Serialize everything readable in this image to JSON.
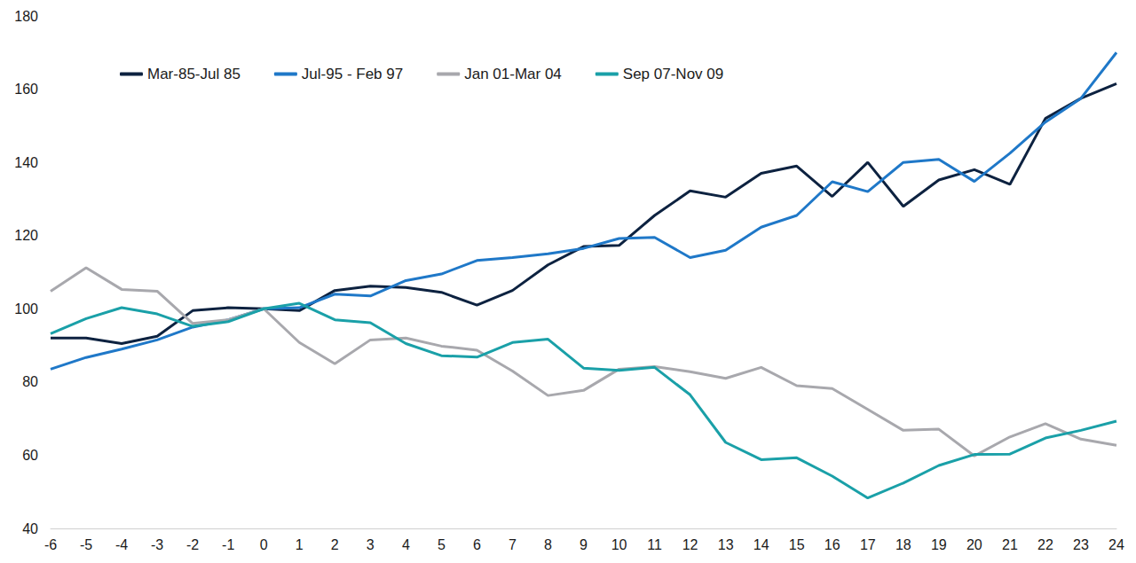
{
  "chart_data": {
    "type": "line",
    "x": [
      -6,
      -5,
      -4,
      -3,
      -2,
      -1,
      0,
      1,
      2,
      3,
      4,
      5,
      6,
      7,
      8,
      9,
      10,
      11,
      12,
      13,
      14,
      15,
      16,
      17,
      18,
      19,
      20,
      21,
      22,
      23,
      24
    ],
    "series": [
      {
        "name": "Mar-85-Jul 85",
        "color": "#0d2240",
        "values": [
          92,
          92,
          90.5,
          92.5,
          99.5,
          100.3,
          100,
          99.5,
          105,
          106.2,
          105.8,
          104.5,
          101,
          105,
          112,
          117,
          117.3,
          125.5,
          132.2,
          130.5,
          137,
          139,
          130.7,
          140,
          128,
          135.2,
          138,
          134,
          152,
          157.5,
          161.5
        ]
      },
      {
        "name": "Jul-95 - Feb 97",
        "color": "#1f78c8",
        "values": [
          83.5,
          86.7,
          89,
          91.5,
          95,
          97,
          100,
          100.3,
          104,
          103.5,
          107.7,
          109.5,
          113.2,
          114,
          115,
          116.5,
          119.2,
          119.5,
          114,
          116,
          122.3,
          125.5,
          134.7,
          132,
          140,
          140.8,
          134.8,
          142.5,
          151,
          157.5,
          170
        ]
      },
      {
        "name": "Jan 01-Mar 04",
        "color": "#a8a8ad",
        "values": [
          104.8,
          111.2,
          105.3,
          104.8,
          96,
          97,
          100,
          90.8,
          85,
          91.5,
          92,
          89.8,
          88.7,
          83,
          76.3,
          77.7,
          83.5,
          84.2,
          82.8,
          81,
          84,
          79,
          78.2,
          72.5,
          66.8,
          67.1,
          59.8,
          65,
          68.6,
          64.4,
          62.7
        ]
      },
      {
        "name": "Sep 07-Nov 09",
        "color": "#1aa0a8",
        "values": [
          93.2,
          97.3,
          100.3,
          98.6,
          95.2,
          96.5,
          100,
          101.5,
          97,
          96.2,
          90.5,
          87.2,
          86.8,
          90.8,
          91.7,
          83.8,
          83.2,
          84,
          76.5,
          63.5,
          58.8,
          59.3,
          54.3,
          48.3,
          52.4,
          57.2,
          60.2,
          60.3,
          64.7,
          66.8,
          69.3
        ]
      }
    ],
    "xlim": [
      -6,
      24
    ],
    "xticks": [
      -6,
      -5,
      -4,
      -3,
      -2,
      -1,
      0,
      1,
      2,
      3,
      4,
      5,
      6,
      7,
      8,
      9,
      10,
      11,
      12,
      13,
      14,
      15,
      16,
      17,
      18,
      19,
      20,
      21,
      22,
      23,
      24
    ],
    "ylim": [
      40,
      180
    ],
    "yticks": [
      40,
      60,
      80,
      100,
      120,
      140,
      160,
      180
    ],
    "grid": false,
    "legend": "top-left"
  }
}
